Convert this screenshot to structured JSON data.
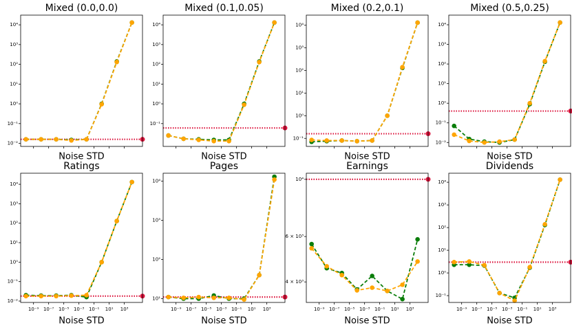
{
  "chart_data": [
    {
      "type": "line",
      "title": "Mixed (0.0,0.0)",
      "xlabel": "Noise STD",
      "xscale": "log",
      "yscale": "log",
      "x": [
        1e-10,
        1e-08,
        1e-06,
        0.0001,
        0.01,
        1,
        100,
        10000
      ],
      "xlim": [
        2e-11,
        250000.0
      ],
      "xticks": [
        1e-09,
        1e-07,
        1e-05,
        0.001,
        0.1,
        10,
        1000
      ],
      "ylim": [
        0.007,
        31000
      ],
      "yticks": [
        {
          "value": 0.01,
          "label": "10⁻²"
        },
        {
          "value": 0.1,
          "label": "10⁻¹"
        },
        {
          "value": 1,
          "label": "10⁰"
        },
        {
          "value": 10,
          "label": "10¹"
        },
        {
          "value": 100,
          "label": "10²"
        },
        {
          "value": 1000,
          "label": "10³"
        },
        {
          "value": 10000,
          "label": "10⁴"
        }
      ],
      "series": [
        {
          "color": "#0a7d0a",
          "values": [
            0.016,
            0.016,
            0.016,
            0.015,
            0.016,
            1,
            140,
            13000
          ]
        },
        {
          "color": "#ffa500",
          "values": [
            0.016,
            0.016,
            0.016,
            0.014,
            0.016,
            0.95,
            130,
            13000
          ]
        }
      ],
      "hline": {
        "value": 0.016,
        "color": "#dc143c"
      }
    },
    {
      "type": "line",
      "title": "Mixed (0.1,0.05)",
      "xlabel": "Noise STD",
      "xscale": "log",
      "yscale": "log",
      "x": [
        1e-10,
        1e-08,
        1e-06,
        0.0001,
        0.01,
        1,
        100,
        10000
      ],
      "xlim": [
        2e-11,
        250000.0
      ],
      "xticks": [
        1e-09,
        1e-07,
        1e-05,
        0.001,
        0.1,
        10,
        1000
      ],
      "ylim": [
        0.007,
        31000
      ],
      "yticks": [
        {
          "value": 0.1,
          "label": "10⁻¹"
        },
        {
          "value": 1,
          "label": "10⁰"
        },
        {
          "value": 10,
          "label": "10¹"
        },
        {
          "value": 100,
          "label": "10²"
        },
        {
          "value": 1000,
          "label": "10³"
        },
        {
          "value": 10000,
          "label": "10⁴"
        }
      ],
      "series": [
        {
          "color": "#0a7d0a",
          "values": [
            0.025,
            0.017,
            0.016,
            0.015,
            0.015,
            1,
            140,
            13000
          ]
        },
        {
          "color": "#ffa500",
          "values": [
            0.025,
            0.017,
            0.015,
            0.013,
            0.013,
            0.9,
            130,
            13000
          ]
        }
      ],
      "hline": {
        "value": 0.06,
        "color": "#dc143c"
      }
    },
    {
      "type": "line",
      "title": "Mixed (0.2,0.1)",
      "xlabel": "Noise STD",
      "xscale": "log",
      "yscale": "log",
      "x": [
        1e-10,
        1e-08,
        1e-06,
        0.0001,
        0.01,
        1,
        100,
        10000
      ],
      "xlim": [
        2e-11,
        250000.0
      ],
      "xticks": [
        1e-09,
        1e-07,
        1e-05,
        0.001,
        0.1,
        10,
        1000
      ],
      "ylim": [
        0.044,
        28000
      ],
      "yticks": [
        {
          "value": 0.1,
          "label": "10⁻¹"
        },
        {
          "value": 1,
          "label": "10⁰"
        },
        {
          "value": 10,
          "label": "10¹"
        },
        {
          "value": 100,
          "label": "10²"
        },
        {
          "value": 1000,
          "label": "10³"
        },
        {
          "value": 10000,
          "label": "10⁴"
        }
      ],
      "series": [
        {
          "color": "#0a7d0a",
          "values": [
            0.07,
            0.075,
            0.08,
            0.075,
            0.08,
            1,
            130,
            13000
          ]
        },
        {
          "color": "#ffa500",
          "values": [
            0.085,
            0.08,
            0.08,
            0.075,
            0.08,
            1,
            140,
            13000
          ]
        }
      ],
      "hline": {
        "value": 0.16,
        "color": "#dc143c"
      }
    },
    {
      "type": "line",
      "title": "Mixed (0.5,0.25)",
      "xlabel": "Noise STD",
      "xscale": "log",
      "yscale": "log",
      "x": [
        1e-10,
        1e-08,
        1e-06,
        0.0001,
        0.01,
        1,
        100,
        10000
      ],
      "xlim": [
        2e-11,
        250000.0
      ],
      "xticks": [
        1e-09,
        1e-07,
        1e-05,
        0.001,
        0.1,
        10,
        1000
      ],
      "ylim": [
        0.0063,
        31000
      ],
      "yticks": [
        {
          "value": 0.01,
          "label": "10⁻²"
        },
        {
          "value": 0.1,
          "label": "10⁻¹"
        },
        {
          "value": 1,
          "label": "10⁰"
        },
        {
          "value": 10,
          "label": "10¹"
        },
        {
          "value": 100,
          "label": "10²"
        },
        {
          "value": 1000,
          "label": "10³"
        },
        {
          "value": 10000,
          "label": "10⁴"
        }
      ],
      "series": [
        {
          "color": "#0a7d0a",
          "values": [
            0.07,
            0.015,
            0.011,
            0.01,
            0.014,
            0.9,
            130,
            13000
          ]
        },
        {
          "color": "#ffa500",
          "values": [
            0.025,
            0.012,
            0.01,
            0.011,
            0.014,
            1,
            140,
            13000
          ]
        }
      ],
      "hline": {
        "value": 0.4,
        "color": "#dc143c"
      }
    },
    {
      "type": "line",
      "title": "Ratings",
      "xlabel": "Noise STD",
      "xscale": "log",
      "yscale": "log",
      "x": [
        1e-10,
        1e-08,
        1e-06,
        0.0001,
        0.01,
        1,
        100,
        10000
      ],
      "xlim": [
        2e-11,
        250000.0
      ],
      "xticks": [
        {
          "value": 1e-09,
          "label": "10⁻⁹"
        },
        {
          "value": 1e-07,
          "label": "10⁻⁷"
        },
        {
          "value": 1e-05,
          "label": "10⁻⁵"
        },
        {
          "value": 0.001,
          "label": "10⁻³"
        },
        {
          "value": 0.1,
          "label": "10⁻¹"
        },
        {
          "value": 10,
          "label": "10¹"
        },
        {
          "value": 1000,
          "label": "10³"
        }
      ],
      "ylim": [
        0.0085,
        37000
      ],
      "yticks": [
        {
          "value": 0.01,
          "label": "10⁻²"
        },
        {
          "value": 0.1,
          "label": "10⁻¹"
        },
        {
          "value": 1,
          "label": "10⁰"
        },
        {
          "value": 10,
          "label": "10¹"
        },
        {
          "value": 100,
          "label": "10²"
        },
        {
          "value": 1000,
          "label": "10³"
        },
        {
          "value": 10000,
          "label": "10⁴"
        }
      ],
      "series": [
        {
          "color": "#0a7d0a",
          "values": [
            0.02,
            0.019,
            0.019,
            0.02,
            0.016,
            1,
            130,
            13000
          ]
        },
        {
          "color": "#ffa500",
          "values": [
            0.018,
            0.018,
            0.018,
            0.019,
            0.02,
            1,
            130,
            13000
          ]
        }
      ],
      "hline": {
        "value": 0.018,
        "color": "#dc143c"
      }
    },
    {
      "type": "line",
      "title": "Pages",
      "xlabel": "Noise STD",
      "xscale": "log",
      "yscale": "log",
      "x": [
        1e-10,
        1e-08,
        1e-06,
        0.0001,
        0.01,
        1,
        100,
        10000
      ],
      "xlim": [
        2e-11,
        250000.0
      ],
      "xticks": [
        {
          "value": 1e-09,
          "label": "10⁻⁹"
        },
        {
          "value": 1e-07,
          "label": "10⁻⁷"
        },
        {
          "value": 1e-05,
          "label": "10⁻⁵"
        },
        {
          "value": 0.001,
          "label": "10⁻³"
        },
        {
          "value": 0.1,
          "label": "10⁻¹"
        },
        {
          "value": 10,
          "label": "10¹"
        },
        {
          "value": 1000,
          "label": "10³"
        }
      ],
      "ylim": [
        8,
        16000
      ],
      "yticks": [
        {
          "value": 10,
          "label": "10¹"
        },
        {
          "value": 100,
          "label": "10²"
        },
        {
          "value": 1000,
          "label": "10³"
        },
        {
          "value": 10000,
          "label": "10⁴"
        }
      ],
      "series": [
        {
          "color": "#0a7d0a",
          "values": [
            11,
            10,
            10,
            12,
            10,
            10,
            40,
            13000
          ]
        },
        {
          "color": "#ffa500",
          "values": [
            11,
            10.5,
            11,
            10.5,
            10.5,
            9.5,
            40,
            11000
          ]
        }
      ],
      "hline": {
        "value": 11,
        "color": "#dc143c"
      }
    },
    {
      "type": "line",
      "title": "Earnings",
      "xlabel": "Noise STD",
      "xscale": "log",
      "yscale": "log",
      "x": [
        1e-10,
        1e-08,
        1e-06,
        0.0001,
        0.01,
        1,
        100,
        10000
      ],
      "xlim": [
        2e-11,
        250000.0
      ],
      "xticks": [
        {
          "value": 1e-09,
          "label": "10⁻⁹"
        },
        {
          "value": 1e-07,
          "label": "10⁻⁷"
        },
        {
          "value": 1e-05,
          "label": "10⁻⁵"
        },
        {
          "value": 0.001,
          "label": "10⁻³"
        },
        {
          "value": 0.1,
          "label": "10⁻¹"
        },
        {
          "value": 10,
          "label": "10¹"
        },
        {
          "value": 1000,
          "label": "10³"
        }
      ],
      "ylim": [
        3330,
        10560
      ],
      "yticks": [
        {
          "value": 4000,
          "label": "4 × 10³"
        },
        {
          "value": 6000,
          "label": "6 × 10³"
        },
        {
          "value": 10000,
          "label": "10⁴"
        }
      ],
      "series": [
        {
          "color": "#0a7d0a",
          "values": [
            5610,
            4520,
            4330,
            3740,
            4220,
            3690,
            3430,
            5850
          ]
        },
        {
          "color": "#ffa500",
          "values": [
            5400,
            4600,
            4250,
            3710,
            3800,
            3690,
            3900,
            4800
          ]
        }
      ],
      "hline": {
        "value": 10000,
        "color": "#dc143c"
      }
    },
    {
      "type": "line",
      "title": "Dividends",
      "xlabel": "Noise STD",
      "xscale": "log",
      "yscale": "log",
      "x": [
        1e-10,
        1e-08,
        1e-06,
        0.0001,
        0.01,
        1,
        100,
        10000
      ],
      "xlim": [
        2e-11,
        250000.0
      ],
      "xticks": [
        {
          "value": 1e-09,
          "label": "10⁻⁹"
        },
        {
          "value": 1e-07,
          "label": "10⁻⁷"
        },
        {
          "value": 1e-05,
          "label": "10⁻⁵"
        },
        {
          "value": 0.001,
          "label": "10⁻³"
        },
        {
          "value": 0.1,
          "label": "10⁻¹"
        },
        {
          "value": 10,
          "label": "10¹"
        },
        {
          "value": 1000,
          "label": "10³"
        }
      ],
      "ylim": [
        0.05,
        25000
      ],
      "yticks": [
        {
          "value": 0.1,
          "label": "10⁻¹"
        },
        {
          "value": 1,
          "label": "10⁰"
        },
        {
          "value": 10,
          "label": "10¹"
        },
        {
          "value": 100,
          "label": "10²"
        },
        {
          "value": 1000,
          "label": "10³"
        },
        {
          "value": 10000,
          "label": "10⁴"
        }
      ],
      "series": [
        {
          "color": "#0a7d0a",
          "values": [
            2.3,
            2.3,
            2.1,
            0.13,
            0.08,
            1.7,
            130,
            13000
          ]
        },
        {
          "color": "#ffa500",
          "values": [
            3,
            3.2,
            2.2,
            0.13,
            0.06,
            1.8,
            140,
            13000
          ]
        }
      ],
      "hline": {
        "value": 3,
        "color": "#dc143c"
      }
    }
  ]
}
